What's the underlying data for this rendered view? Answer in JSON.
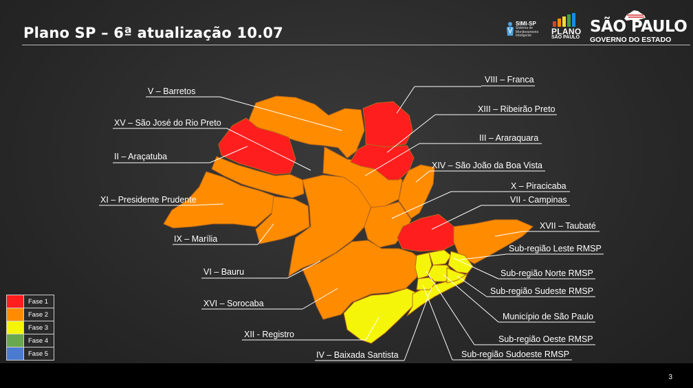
{
  "header": {
    "title": "Plano SP – 6ª atualização 10.07"
  },
  "logos": {
    "simi_name": "SIMI-SP",
    "simi_sub": "Sistema de Monitoramento Inteligente",
    "plano_word": "PLANO",
    "plano_sub": "SÃO PAULO",
    "gov_name": "SÃO PAULO",
    "gov_sub": "GOVERNO DO ESTADO"
  },
  "colors": {
    "fase1": "#ff1e1e",
    "fase2": "#ff8c00",
    "fase3": "#f5f50a",
    "fase4": "#6aa84f",
    "fase5": "#4a7bd0"
  },
  "regions": [
    {
      "label": "V – Barretos",
      "fase": "Fase 2"
    },
    {
      "label": "XV – São José do Rio Preto",
      "fase": "Fase 1"
    },
    {
      "label": "II – Araçatuba",
      "fase": "Fase 1"
    },
    {
      "label": "XI – Presidente Prudente",
      "fase": "Fase 2"
    },
    {
      "label": "IX – Marília",
      "fase": "Fase 2"
    },
    {
      "label": "VI – Bauru",
      "fase": "Fase 2"
    },
    {
      "label": "XVI – Sorocaba",
      "fase": "Fase 2"
    },
    {
      "label": "XII - Registro",
      "fase": "Fase 3"
    },
    {
      "label": "IV – Baixada Santista",
      "fase": "Fase 3"
    },
    {
      "label": "VIII – Franca",
      "fase": "Fase 1"
    },
    {
      "label": "XIII – Ribeirão Preto",
      "fase": "Fase 1"
    },
    {
      "label": "III – Araraquara",
      "fase": "Fase 2"
    },
    {
      "label": "XIV – São João da Boa Vista",
      "fase": "Fase 2"
    },
    {
      "label": "X – Piracicaba",
      "fase": "Fase 2"
    },
    {
      "label": "VII - Campinas",
      "fase": "Fase 1"
    },
    {
      "label": "XVII – Taubaté",
      "fase": "Fase 2"
    },
    {
      "label": "Sub-região Leste RMSP",
      "fase": "Fase 3"
    },
    {
      "label": "Sub-região Norte RMSP",
      "fase": "Fase 3"
    },
    {
      "label": "Sub-região Sudeste RMSP",
      "fase": "Fase 3"
    },
    {
      "label": "Município de São Paulo",
      "fase": "Fase 3"
    },
    {
      "label": "Sub-região Oeste RMSP",
      "fase": "Fase 3"
    },
    {
      "label": "Sub-região Sudoeste RMSP",
      "fase": "Fase 3"
    }
  ],
  "legend": [
    "Fase 1",
    "Fase 2",
    "Fase 3",
    "Fase 4",
    "Fase 5"
  ],
  "footer": {
    "page_number": "3"
  }
}
